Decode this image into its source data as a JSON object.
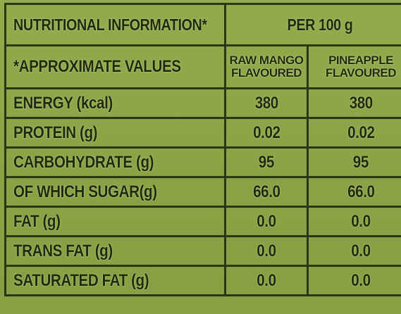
{
  "table": {
    "header": [
      "NUTRITIONAL INFORMATION*",
      "PER 100 g"
    ],
    "subheader": [
      "*APPROXIMATE VALUES",
      "RAW MANGO FLAVOURED",
      "PINEAPPLE FLAVOURED"
    ],
    "rows": [
      [
        "ENERGY (kcal)",
        "380",
        "380"
      ],
      [
        "PROTEIN (g)",
        "0.02",
        "0.02"
      ],
      [
        "CARBOHYDRATE (g)",
        "95",
        "95"
      ],
      [
        "OF WHICH SUGAR(g)",
        "66.0",
        "66.0"
      ],
      [
        "FAT (g)",
        "0.0",
        "0.0"
      ],
      [
        "TRANS FAT (g)",
        "0.0",
        "0.0"
      ],
      [
        "SATURATED FAT (g)",
        "0.0",
        "0.0"
      ]
    ]
  }
}
